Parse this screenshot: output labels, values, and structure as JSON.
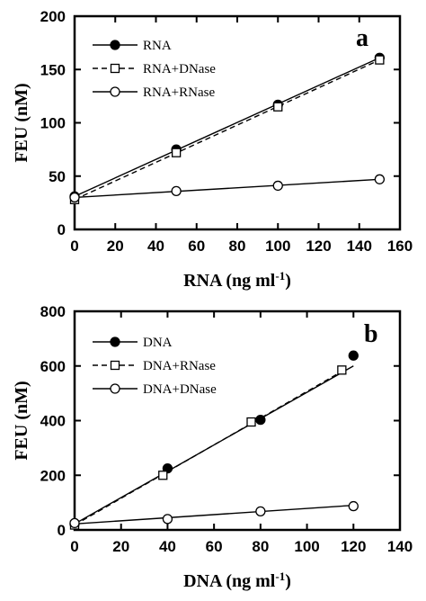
{
  "chart_data": [
    {
      "type": "line",
      "panel_label": "a",
      "xlabel": "RNA (ng ml",
      "xlabel_sup": "-1",
      "xlabel_close": ")",
      "ylabel": "FEU (nM)",
      "xlim": [
        0,
        160
      ],
      "ylim": [
        0,
        200
      ],
      "xticks": [
        0,
        20,
        40,
        60,
        80,
        100,
        120,
        140,
        160
      ],
      "yticks": [
        0,
        50,
        100,
        150,
        200
      ],
      "legend_position": "top-left",
      "series": [
        {
          "name": "RNA",
          "marker": "filled-circle",
          "line": "solid",
          "x": [
            0,
            50,
            100,
            150
          ],
          "y": [
            31,
            75,
            117,
            161
          ],
          "fit": [
            [
              0,
              31
            ],
            [
              150,
              161
            ]
          ]
        },
        {
          "name": "RNA+DNase",
          "marker": "open-square",
          "line": "dashed",
          "x": [
            0,
            50,
            100,
            150
          ],
          "y": [
            28,
            72,
            115,
            159
          ],
          "fit": [
            [
              0,
              28
            ],
            [
              150,
              159
            ]
          ]
        },
        {
          "name": "RNA+RNase",
          "marker": "open-circle",
          "line": "solid",
          "x": [
            0,
            50,
            100,
            150
          ],
          "y": [
            30,
            36,
            41,
            47
          ],
          "fit": [
            [
              0,
              30
            ],
            [
              150,
              47
            ]
          ]
        }
      ]
    },
    {
      "type": "line",
      "panel_label": "b",
      "xlabel": "DNA (ng ml",
      "xlabel_sup": "-1",
      "xlabel_close": ")",
      "ylabel": "FEU (nM)",
      "xlim": [
        0,
        140
      ],
      "ylim": [
        0,
        800
      ],
      "xticks": [
        0,
        20,
        40,
        60,
        80,
        100,
        120,
        140
      ],
      "yticks": [
        0,
        200,
        400,
        600,
        800
      ],
      "legend_position": "top-left",
      "series": [
        {
          "name": "DNA",
          "marker": "filled-circle",
          "line": "solid",
          "x": [
            0,
            40,
            80,
            120
          ],
          "y": [
            22,
            225,
            403,
            638
          ],
          "fit": [
            [
              0,
              22
            ],
            [
              120,
              600
            ]
          ]
        },
        {
          "name": "DNA+RNase",
          "marker": "open-square",
          "line": "dashed",
          "x": [
            0,
            38,
            76,
            115
          ],
          "y": [
            18,
            200,
            395,
            585
          ],
          "fit": [
            [
              0,
              18
            ],
            [
              115,
              580
            ]
          ]
        },
        {
          "name": "DNA+DNase",
          "marker": "open-circle",
          "line": "solid",
          "x": [
            0,
            40,
            80,
            120
          ],
          "y": [
            25,
            40,
            68,
            87
          ],
          "fit": [
            [
              0,
              22
            ],
            [
              120,
              90
            ]
          ]
        }
      ]
    }
  ]
}
